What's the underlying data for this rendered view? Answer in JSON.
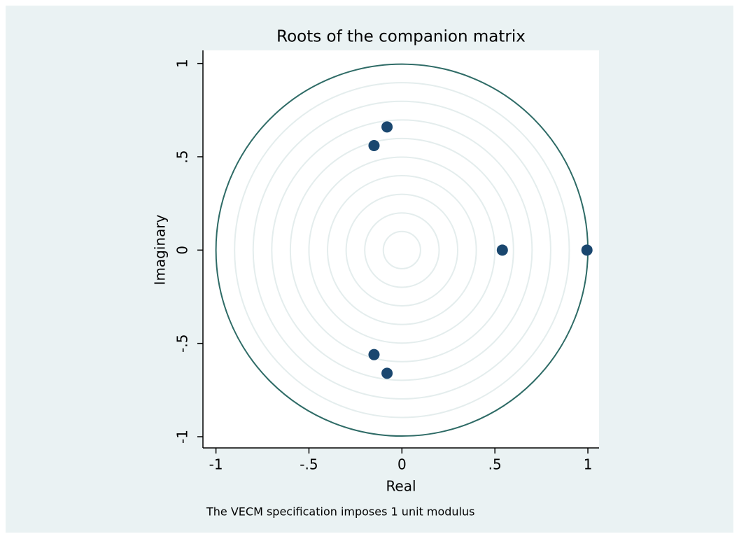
{
  "chart_data": {
    "type": "scatter",
    "title": "Roots of the companion matrix",
    "x_label": "Real",
    "y_label": "Imaginary",
    "note": "The VECM specification imposes 1 unit modulus",
    "x": [
      -0.08,
      -0.15,
      0.54,
      0.995,
      -0.15,
      -0.08
    ],
    "values": [
      0.66,
      0.56,
      0,
      0,
      -0.56,
      -0.66
    ],
    "color": "#1a476f",
    "circle_color": "#2e6b66",
    "xlim": [
      -1.07,
      1.06
    ],
    "ylim": [
      -1.06,
      1.07
    ],
    "xticks": [
      -1,
      {
        "value": -0.5,
        "label": "-.5"
      },
      0,
      {
        "value": 0.5,
        "label": ".5"
      },
      1
    ],
    "yticks": [
      -1,
      {
        "value": -0.5,
        "label": "-.5"
      },
      0,
      {
        "value": 0.5,
        "label": ".5"
      },
      1
    ]
  }
}
